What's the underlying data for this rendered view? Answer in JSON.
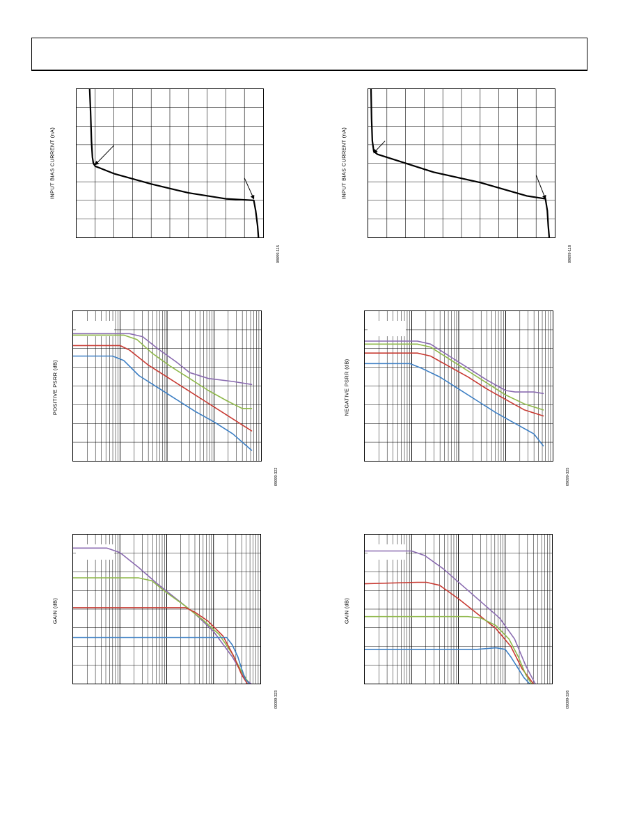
{
  "page": {
    "header": ""
  },
  "charts": [
    {
      "id": "ibias1",
      "ylabel": "INPUT BIAS CURRENT (nA)",
      "code": "09099-115"
    },
    {
      "id": "ibias2",
      "ylabel": "INPUT BIAS CURRENT (nA)",
      "code": "09099-118"
    },
    {
      "id": "psrr_pos",
      "ylabel": "POSITIVE PSRR (dB)",
      "code": "09099-322"
    },
    {
      "id": "psrr_neg",
      "ylabel": "NEGATIVE PSRR (dB)",
      "code": "09099-325"
    },
    {
      "id": "gain1",
      "ylabel": "GAIN (dB)",
      "code": "09099-323"
    },
    {
      "id": "gain2",
      "ylabel": "GAIN (dB)",
      "code": "09099-326"
    }
  ],
  "chart_data": [
    {
      "type": "line",
      "panel": "ibias1",
      "grid": true,
      "xscale": "linear",
      "xlim": [
        0,
        100
      ],
      "ylim": [
        0,
        100
      ],
      "series": [
        {
          "color": "#000000",
          "x": [
            7,
            7.5,
            8,
            8.5,
            9,
            10,
            12,
            20,
            40,
            60,
            80,
            95,
            96,
            97,
            97.5
          ],
          "y": [
            100,
            85,
            65,
            54,
            50,
            48,
            47,
            43,
            36,
            30,
            26,
            25,
            18,
            8,
            0
          ]
        }
      ],
      "arrows": [
        {
          "from": [
            20,
            62
          ],
          "to": [
            10,
            49
          ]
        },
        {
          "from": [
            90,
            40
          ],
          "to": [
            95,
            26
          ]
        }
      ]
    },
    {
      "type": "line",
      "panel": "ibias2",
      "grid": true,
      "xscale": "linear",
      "xlim": [
        0,
        100
      ],
      "ylim": [
        0,
        100
      ],
      "series": [
        {
          "color": "#000000",
          "x": [
            1.5,
            1.8,
            2.2,
            3,
            5,
            15,
            35,
            60,
            85,
            95,
            96,
            96.5,
            97
          ],
          "y": [
            100,
            80,
            65,
            58,
            56,
            52,
            44,
            37,
            28,
            26,
            18,
            8,
            0
          ]
        }
      ],
      "arrows": [
        {
          "from": [
            9,
            65
          ],
          "to": [
            3,
            57
          ]
        },
        {
          "from": [
            90,
            42
          ],
          "to": [
            95,
            26
          ]
        }
      ]
    },
    {
      "type": "line",
      "panel": "psrr_pos",
      "grid": true,
      "xscale": "log",
      "xlim": [
        0,
        1
      ],
      "ylim": [
        0,
        100
      ],
      "series": [
        {
          "color": "#8a6bb0",
          "x": [
            0,
            0.3,
            0.37,
            0.45,
            0.55,
            0.62,
            0.72,
            0.85,
            0.95
          ],
          "y": [
            85,
            85,
            83,
            75,
            66,
            59,
            55,
            53,
            51
          ]
        },
        {
          "color": "#8fb84a",
          "x": [
            0,
            0.27,
            0.34,
            0.42,
            0.52,
            0.62,
            0.72,
            0.82,
            0.9,
            0.95
          ],
          "y": [
            84,
            84,
            81,
            72,
            63,
            55,
            47,
            40,
            35,
            35
          ]
        },
        {
          "color": "#c83a32",
          "x": [
            0,
            0.25,
            0.3,
            0.4,
            0.5,
            0.6,
            0.7,
            0.8,
            0.9,
            0.95
          ],
          "y": [
            77,
            77,
            74,
            64,
            56,
            48,
            40,
            32,
            24,
            20
          ]
        },
        {
          "color": "#3d7fc4",
          "x": [
            0,
            0.21,
            0.27,
            0.35,
            0.45,
            0.55,
            0.65,
            0.75,
            0.85,
            0.95
          ],
          "y": [
            70,
            70,
            67,
            57,
            49,
            41,
            33,
            26,
            18,
            7
          ]
        }
      ]
    },
    {
      "type": "line",
      "panel": "psrr_neg",
      "grid": true,
      "xscale": "log",
      "xlim": [
        0,
        1
      ],
      "ylim": [
        0,
        100
      ],
      "series": [
        {
          "color": "#8a6bb0",
          "x": [
            0,
            0.28,
            0.35,
            0.45,
            0.55,
            0.65,
            0.75,
            0.8,
            0.9,
            0.95
          ],
          "y": [
            80,
            80,
            78,
            70,
            62,
            54,
            47,
            46,
            46,
            45
          ]
        },
        {
          "color": "#8fb84a",
          "x": [
            0,
            0.28,
            0.35,
            0.45,
            0.55,
            0.65,
            0.75,
            0.85,
            0.95
          ],
          "y": [
            78,
            78,
            76,
            68,
            60,
            52,
            44,
            38,
            34
          ]
        },
        {
          "color": "#c83a32",
          "x": [
            0,
            0.28,
            0.35,
            0.45,
            0.55,
            0.65,
            0.75,
            0.85,
            0.95
          ],
          "y": [
            72,
            72,
            70,
            63,
            56,
            48,
            41,
            34,
            30
          ]
        },
        {
          "color": "#3d7fc4",
          "x": [
            0,
            0.24,
            0.3,
            0.4,
            0.5,
            0.6,
            0.7,
            0.8,
            0.9,
            0.95
          ],
          "y": [
            65,
            65,
            62,
            56,
            48,
            40,
            32,
            25,
            18,
            10
          ]
        }
      ]
    },
    {
      "type": "line",
      "panel": "gain1",
      "grid": true,
      "xscale": "log",
      "xlim": [
        0,
        1
      ],
      "ylim": [
        0,
        100
      ],
      "series": [
        {
          "color": "#8a6bb0",
          "x": [
            0,
            0.18,
            0.25,
            0.35,
            0.45,
            0.55,
            0.65,
            0.75,
            0.85,
            0.92,
            0.95
          ],
          "y": [
            91,
            91,
            88,
            78,
            67,
            57,
            47,
            35,
            18,
            3,
            0
          ]
        },
        {
          "color": "#8fb84a",
          "x": [
            0,
            0.35,
            0.42,
            0.5,
            0.6,
            0.7,
            0.78,
            0.85,
            0.9,
            0.94
          ],
          "y": [
            71,
            71,
            69,
            61,
            52,
            42,
            33,
            20,
            8,
            0
          ]
        },
        {
          "color": "#c83a32",
          "x": [
            0,
            0.6,
            0.65,
            0.72,
            0.8,
            0.86,
            0.9,
            0.93
          ],
          "y": [
            51,
            51,
            48,
            42,
            32,
            18,
            6,
            0
          ]
        },
        {
          "color": "#3d7fc4",
          "x": [
            0,
            0.82,
            0.85,
            0.88,
            0.9,
            0.92,
            0.94
          ],
          "y": [
            31,
            31,
            26,
            18,
            10,
            3,
            0
          ]
        }
      ]
    },
    {
      "type": "line",
      "panel": "gain2",
      "grid": true,
      "xscale": "log",
      "xlim": [
        0,
        1
      ],
      "ylim": [
        0,
        100
      ],
      "series": [
        {
          "color": "#8a6bb0",
          "x": [
            0,
            0.25,
            0.32,
            0.42,
            0.52,
            0.62,
            0.72,
            0.8,
            0.86,
            0.91
          ],
          "y": [
            89,
            89,
            86,
            77,
            66,
            55,
            44,
            30,
            12,
            0
          ]
        },
        {
          "color": "#c83a32",
          "x": [
            0,
            0.28,
            0.33,
            0.4,
            0.5,
            0.6,
            0.7,
            0.78,
            0.84,
            0.9
          ],
          "y": [
            67,
            68,
            68,
            66,
            57,
            47,
            37,
            25,
            10,
            0
          ]
        },
        {
          "color": "#8fb84a",
          "x": [
            0,
            0.55,
            0.62,
            0.7,
            0.77,
            0.82,
            0.86,
            0.89
          ],
          "y": [
            45,
            45,
            44,
            39,
            30,
            18,
            6,
            0
          ]
        },
        {
          "color": "#3d7fc4",
          "x": [
            0,
            0.6,
            0.7,
            0.75,
            0.78,
            0.82,
            0.85,
            0.88
          ],
          "y": [
            23,
            23,
            24,
            23,
            18,
            10,
            4,
            0
          ]
        }
      ]
    }
  ]
}
